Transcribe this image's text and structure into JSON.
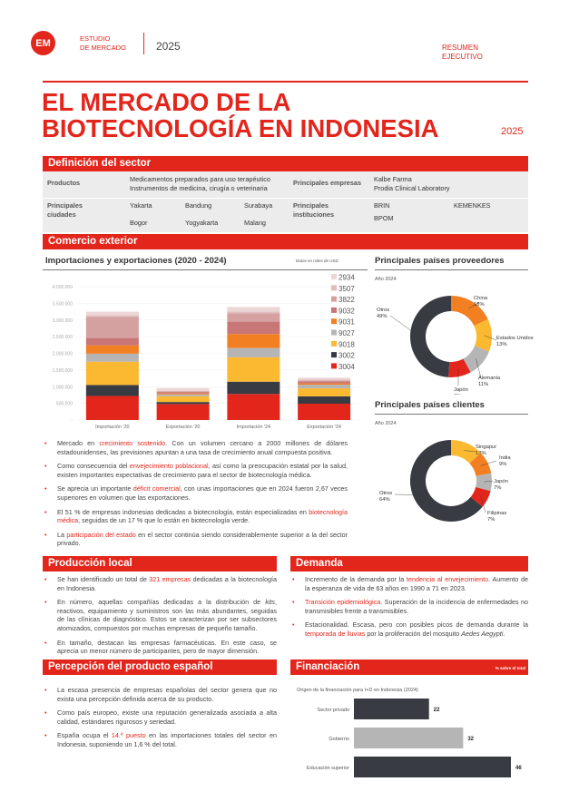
{
  "header": {
    "logo": "EM",
    "brand_line1": "ESTUDIO",
    "brand_line2": "DE MERCADO",
    "year": "2025",
    "doc_type_line1": "RESUMEN",
    "doc_type_line2": "EJECUTIVO",
    "title_line1": "EL MERCADO DE LA",
    "title_line2": "BIOTECNOLOGÍA EN INDONESIA",
    "title_year": "2025"
  },
  "colors": {
    "accent": "#e3261c",
    "dark": "#383b42",
    "yellow": "#fbb831",
    "orange": "#f27f22",
    "gray": "#b6b5b6"
  },
  "sector": {
    "heading": "Definición del sector",
    "productos_label": "Productos",
    "productos": [
      "Medicamentos preparados para uso terapéutico",
      "Instrumentos de medicina, cirugía o veterinaria"
    ],
    "empresas_label": "Principales empresas",
    "empresas": [
      "Kalbe Farma",
      "Prodia Clinical Laboratory"
    ],
    "ciudades_label": "Principales ciudades",
    "ciudades": [
      "Yakarta",
      "Bandung",
      "Surabaya",
      "Bogor",
      "Yogyakarta",
      "Malang"
    ],
    "instituciones_label": "Principales instituciones",
    "instituciones": [
      "BRIN",
      "KEMENKES",
      "BPOM"
    ]
  },
  "comercio": {
    "heading": "Comercio exterior",
    "chart_title": "Importaciones y exportaciones (2020 - 2024)",
    "units_note": "Datos en miles de USD",
    "proveedores_title": "Principales países proveedores",
    "proveedores_year": "Año 2024",
    "clientes_title": "Principales países clientes",
    "clientes_year": "Año 2024",
    "bullets": [
      [
        {
          "t": "Mercado en "
        },
        {
          "t": "crecimiento sostenido",
          "hl": true
        },
        {
          "t": ". Con un volumen cercano a 2000 millones de dólares estadounidenses, las previsiones apuntan a una tasa de crecimiento anual compuesta positiva."
        }
      ],
      [
        {
          "t": "Como consecuencia del "
        },
        {
          "t": "envejecimiento poblacional",
          "hl": true
        },
        {
          "t": ", así como la preocupación estatal por la salud, existen importantes expectativas de crecimiento para el sector de biotecnología médica."
        }
      ],
      [
        {
          "t": "Se aprecia un importante "
        },
        {
          "t": "déficit comercial",
          "hl": true
        },
        {
          "t": ", con unas importaciones que en 2024 fueron 2,67 veces superiores en volumen que las exportaciones."
        }
      ],
      [
        {
          "t": "El 51 % de empresas indonesias dedicadas a biotecnología, están especializadas en "
        },
        {
          "t": "biotecnología médica",
          "hl": true
        },
        {
          "t": ", seguidas de un 17 % que lo están en biotecnología verde."
        }
      ],
      [
        {
          "t": "La "
        },
        {
          "t": "participación del estado",
          "hl": true
        },
        {
          "t": " en el sector continúa siendo considerablemente superior a la del sector privado."
        }
      ]
    ]
  },
  "produccion": {
    "heading": "Producción local",
    "bullets": [
      [
        {
          "t": "Se han identificado un total de "
        },
        {
          "t": "321 empresas",
          "hl": true
        },
        {
          "t": " dedicadas a la biotecnología en Indonesia."
        }
      ],
      [
        {
          "t": "En número, aquellas compañías dedicadas a la distribución de "
        },
        {
          "t": "kits",
          "it": true
        },
        {
          "t": ", reactivos, equipamiento y suministros son las más abundantes, seguidas de las clínicas de diagnóstico. Estos se caracterizan por ser subsectores atomizados, compuestos por muchas empresas de pequeño tamaño."
        }
      ],
      [
        {
          "t": "En tamaño, destacan las empresas farmacéuticas. En este caso, se aprecia un menor número de participantes, pero de mayor dimensión."
        }
      ]
    ]
  },
  "demanda": {
    "heading": "Demanda",
    "bullets": [
      [
        {
          "t": "Incremento de la demanda por la "
        },
        {
          "t": "tendencia al envejecimiento",
          "hl": true
        },
        {
          "t": ". Aumento de la esperanza de vida de 63 años en 1990 a 71 en 2023."
        }
      ],
      [
        {
          "t": "Transición epidemiológica",
          "hl": true
        },
        {
          "t": ". Superación de la incidencia de enfermedades no transmisibles frente a transmisibles."
        }
      ],
      [
        {
          "t": "Estacionalidad. Escasa, pero con posibles picos de demanda durante la "
        },
        {
          "t": "temporada de lluvias",
          "hl": true
        },
        {
          "t": " por la proliferación del mosquito "
        },
        {
          "t": "Aedes Aegypti",
          "it": true
        },
        {
          "t": "."
        }
      ]
    ]
  },
  "percepcion": {
    "heading": "Percepción del producto español",
    "bullets": [
      [
        {
          "t": "La escasa presencia de empresas españolas del sector genera que no exista una percepción definida acerca de su producto."
        }
      ],
      [
        {
          "t": "Como país europeo, existe una reputación generalizada asociada a alta calidad, estándares rigurosos y seriedad."
        }
      ],
      [
        {
          "t": "España ocupa el "
        },
        {
          "t": "14.º puesto",
          "hl": true
        },
        {
          "t": " en las importaciones totales del sector en Indonesia, suponiendo un 1,6 % del total."
        }
      ]
    ]
  },
  "financiacion": {
    "heading": "Financiación",
    "note": "% sobre el total"
  },
  "chart_data": [
    {
      "type": "bar",
      "stacked": true,
      "title": "Importaciones y exportaciones (2020 - 2024)",
      "ylabel": "",
      "ylim": [
        0,
        4000000
      ],
      "yticks": [
        "-",
        "500.000",
        "1.000.000",
        "1.500.000",
        "2.000.000",
        "2.500.000",
        "3.000.000",
        "3.500.000",
        "4.000.000"
      ],
      "categories": [
        "Importación '20",
        "Exportación '20",
        "Importación '24",
        "Exportación '24"
      ],
      "legend_position": "right",
      "grid": true,
      "series": [
        {
          "name": "3004",
          "color": "#e3261c",
          "values": [
            720000,
            480000,
            780000,
            490000
          ]
        },
        {
          "name": "3002",
          "color": "#383b42",
          "values": [
            330000,
            60000,
            370000,
            220000
          ]
        },
        {
          "name": "9018",
          "color": "#fbb831",
          "values": [
            700000,
            170000,
            730000,
            240000
          ]
        },
        {
          "name": "9027",
          "color": "#b6b5b6",
          "values": [
            240000,
            60000,
            280000,
            110000
          ]
        },
        {
          "name": "9031",
          "color": "#f27f22",
          "values": [
            250000,
            30000,
            420000,
            40000
          ]
        },
        {
          "name": "9032",
          "color": "#c87676",
          "values": [
            220000,
            40000,
            370000,
            60000
          ]
        },
        {
          "name": "3822",
          "color": "#d4a0a0",
          "values": [
            630000,
            20000,
            250000,
            30000
          ]
        },
        {
          "name": "3507",
          "color": "#e0bcbc",
          "values": [
            50000,
            20000,
            50000,
            20000
          ]
        },
        {
          "name": "2934",
          "color": "#ecd6d6",
          "values": [
            110000,
            80000,
            140000,
            60000
          ]
        }
      ]
    },
    {
      "type": "pie",
      "donut": true,
      "title": "Principales países proveedores",
      "subtitle": "Año 2024",
      "slices": [
        {
          "label": "China",
          "value": 18,
          "color": "#f27f22"
        },
        {
          "label": "Estados Unidos",
          "value": 13,
          "color": "#fbb831"
        },
        {
          "label": "Alemania",
          "value": 11,
          "color": "#b6b5b6"
        },
        {
          "label": "Japón",
          "value": 9,
          "color": "#e3261c"
        },
        {
          "label": "Otros",
          "value": 49,
          "color": "#383b42"
        }
      ]
    },
    {
      "type": "pie",
      "donut": true,
      "title": "Principales países clientes",
      "subtitle": "Año 2024",
      "slices": [
        {
          "label": "Singapur",
          "value": 13,
          "color": "#fbb831"
        },
        {
          "label": "India",
          "value": 9,
          "color": "#f27f22"
        },
        {
          "label": "Japón",
          "value": 7,
          "color": "#b6b5b6"
        },
        {
          "label": "Filipinas",
          "value": 7,
          "color": "#e3261c"
        },
        {
          "label": "Otros",
          "value": 64,
          "color": "#383b42"
        }
      ]
    },
    {
      "type": "bar",
      "orientation": "horizontal",
      "title": "Origen de la financiación para I+D en Indonesia (2024)",
      "unit": "% sobre el total",
      "categories": [
        "Sector privado",
        "Gobierno",
        "Educación superior"
      ],
      "values": [
        22,
        32,
        46
      ],
      "colors": [
        "#383b42",
        "#b6b5b6",
        "#383b42"
      ]
    }
  ]
}
